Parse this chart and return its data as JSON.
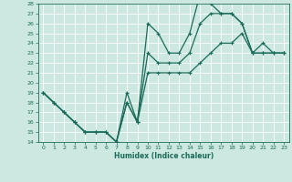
{
  "title": "",
  "xlabel": "Humidex (Indice chaleur)",
  "bg_color": "#cce8e0",
  "line_color": "#1a6b5a",
  "grid_color": "#b0d8d0",
  "x": [
    0,
    1,
    2,
    3,
    4,
    5,
    6,
    7,
    8,
    9,
    10,
    11,
    12,
    13,
    14,
    15,
    16,
    17,
    18,
    19,
    20,
    21,
    22,
    23
  ],
  "line1": [
    19,
    18,
    17,
    16,
    15,
    15,
    15,
    14,
    19,
    16,
    26,
    25,
    23,
    23,
    25,
    29,
    28,
    27,
    27,
    26,
    23,
    24,
    23,
    23
  ],
  "line2": [
    19,
    18,
    17,
    16,
    15,
    15,
    15,
    14,
    18,
    16,
    23,
    22,
    22,
    22,
    23,
    26,
    27,
    27,
    27,
    26,
    23,
    23,
    23,
    23
  ],
  "line3": [
    19,
    18,
    17,
    16,
    15,
    15,
    15,
    14,
    18,
    16,
    21,
    21,
    21,
    21,
    21,
    22,
    23,
    24,
    24,
    25,
    23,
    23,
    23,
    23
  ],
  "ylim": [
    14,
    28
  ],
  "xlim": [
    -0.5,
    23.5
  ],
  "yticks": [
    14,
    15,
    16,
    17,
    18,
    19,
    20,
    21,
    22,
    23,
    24,
    25,
    26,
    27,
    28
  ],
  "xticks": [
    0,
    1,
    2,
    3,
    4,
    5,
    6,
    7,
    8,
    9,
    10,
    11,
    12,
    13,
    14,
    15,
    16,
    17,
    18,
    19,
    20,
    21,
    22,
    23
  ],
  "markersize": 3,
  "linewidth": 0.9
}
